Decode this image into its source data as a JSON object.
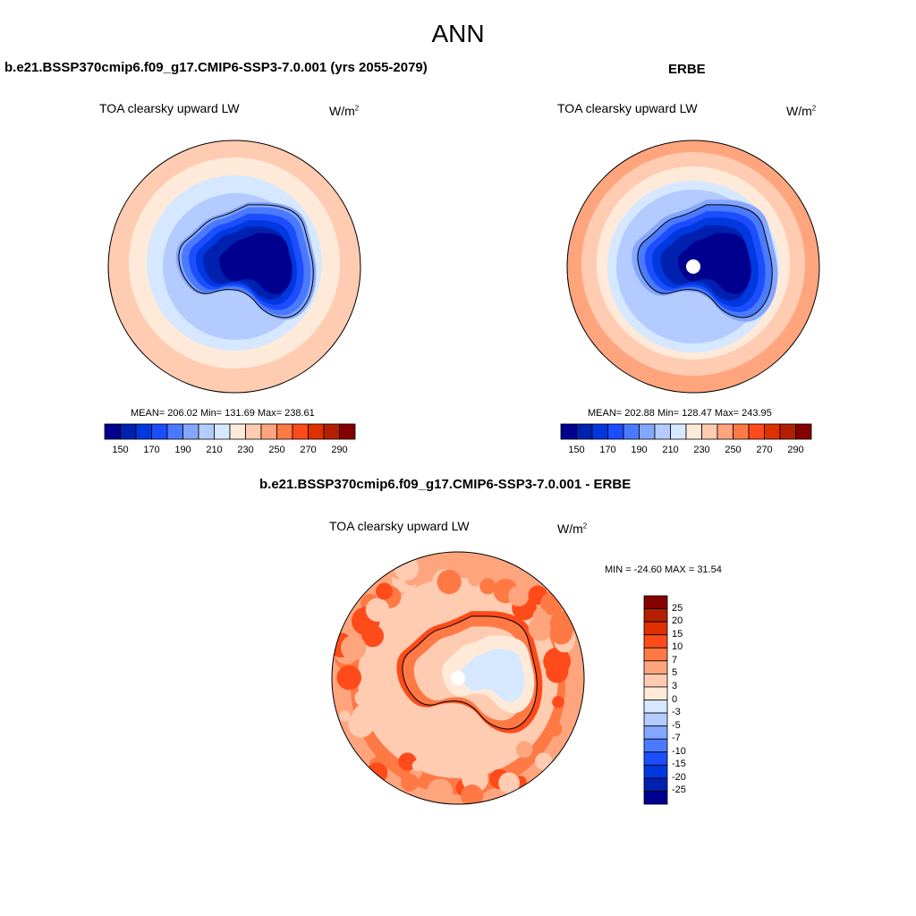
{
  "title": "ANN",
  "panels": [
    {
      "case_title": "b.e21.BSSP370cmip6.f09_g17.CMIP6-SSP3-7.0.001 (yrs 2055-2079)",
      "variable": "TOA clearsky upward LW",
      "units_base": "W/m",
      "units_exp": "2",
      "stats": "MEAN= 206.02  Min= 131.69  Max= 238.61"
    },
    {
      "case_title": "ERBE",
      "variable": "TOA clearsky upward LW",
      "units_base": "W/m",
      "units_exp": "2",
      "stats": "MEAN= 202.88  Min= 128.47  Max= 243.95"
    },
    {
      "case_title": "b.e21.BSSP370cmip6.f09_g17.CMIP6-SSP3-7.0.001 - ERBE",
      "variable": "TOA clearsky upward LW",
      "units_base": "W/m",
      "units_exp": "2",
      "stats": "MIN = -24.60 MAX =  31.54"
    }
  ],
  "colorbar_abs": {
    "labels": [
      "150",
      "170",
      "190",
      "210",
      "230",
      "250",
      "270",
      "290"
    ],
    "colors": [
      "#00008f",
      "#0020b0",
      "#0038e0",
      "#1c4dff",
      "#4a7bff",
      "#85a6ff",
      "#b4cbff",
      "#d5e8ff",
      "#ffeada",
      "#ffcbb1",
      "#ffa57d",
      "#ff7945",
      "#ff4a1a",
      "#df3000",
      "#b31f00",
      "#850000"
    ]
  },
  "colorbar_diff": {
    "labels": [
      "25",
      "20",
      "15",
      "10",
      "7",
      "5",
      "3",
      "0",
      "-3",
      "-5",
      "-7",
      "-10",
      "-15",
      "-20",
      "-25"
    ],
    "colors": [
      "#850000",
      "#b31f00",
      "#df3000",
      "#ff4a1a",
      "#ff7945",
      "#ffa57d",
      "#ffcbb1",
      "#ffeada",
      "#d5e8ff",
      "#b4cbff",
      "#85a6ff",
      "#4a7bff",
      "#1c4dff",
      "#0038e0",
      "#0020b0",
      "#00008f"
    ]
  }
}
